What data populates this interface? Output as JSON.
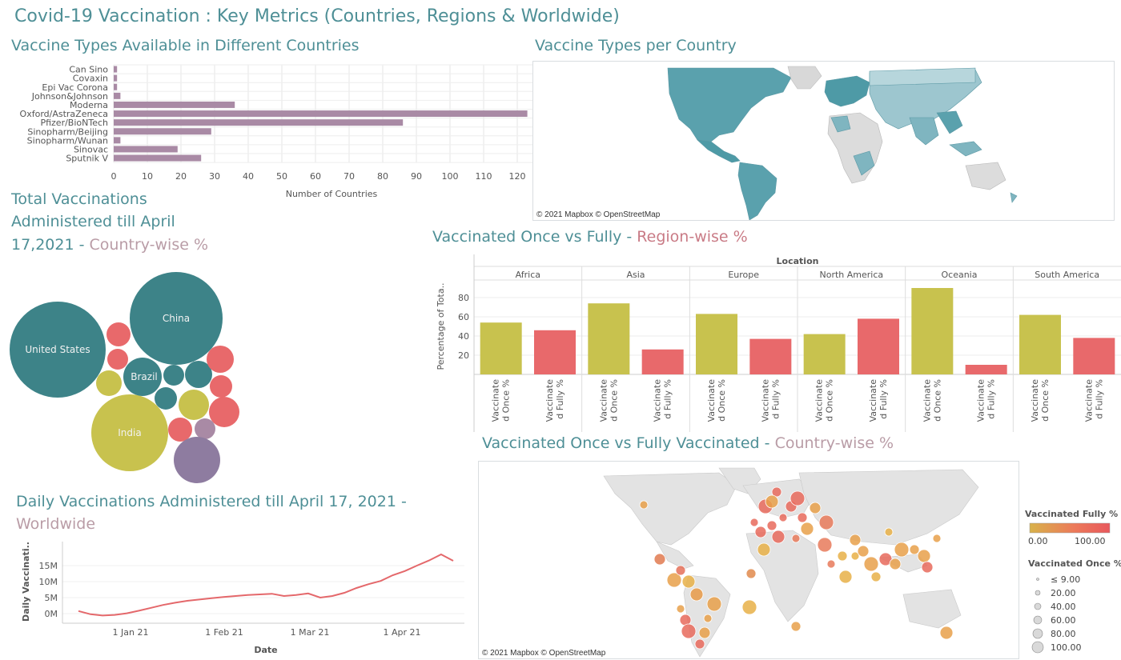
{
  "dashboard_title": "Covid-19 Vaccination : Key Metrics (Countries, Regions & Worldwide)",
  "sections": {
    "vaccine_types_title": "Vaccine Types Available in Different Countries",
    "vaccine_map_title": "Vaccine Types per Country",
    "total_vacc_title_1": "Total Vaccinations",
    "total_vacc_title_2": "Administered till April",
    "total_vacc_title_3": "17,2021 -",
    "total_vacc_title_suffix": "Country-wise %",
    "region_title": "Vaccinated Once vs Fully -",
    "region_title_suffix": "Region-wise %",
    "country_map_title": "Vaccinated Once vs Fully Vaccinated -",
    "country_map_title_suffix": "Country-wise %",
    "daily_title": "Daily Vaccinations Administered till April 17, 2021 -",
    "daily_title_suffix": "Worldwide"
  },
  "map_copyright": "© 2021 Mapbox © OpenStreetMap",
  "colors": {
    "bar_purple": "#a98aa5",
    "teal": "#3f8a8f",
    "title_teal": "#4e8f96",
    "subtitle_rose": "#b99ca6",
    "olive": "#c8c24e",
    "coral": "#e8696b",
    "daily_line": "#e4686b"
  },
  "chart_data": [
    {
      "type": "bar",
      "orientation": "horizontal",
      "categories": [
        "Can Sino",
        "Covaxin",
        "Epi Vac Corona",
        "Johnson&Johnson",
        "Moderna",
        "Oxford/AstraZeneca",
        "Pfizer/BioNTech",
        "Sinopharm/Beijing",
        "Sinopharm/Wunan",
        "Sinovac",
        "Sputnik V"
      ],
      "values": [
        1,
        1,
        1,
        2,
        36,
        123,
        86,
        29,
        2,
        19,
        26
      ],
      "xlabel": "Number of Countries",
      "xticks": [
        "0",
        "10",
        "20",
        "30",
        "40",
        "50",
        "60",
        "70",
        "80",
        "90",
        "100",
        "110",
        "120"
      ],
      "xlim": [
        0,
        130
      ]
    },
    {
      "type": "bar",
      "header": "Location",
      "ylabel": "Percentage of Tota..",
      "yticks": [
        "20",
        "40",
        "60",
        "80"
      ],
      "ylim": [
        0,
        95
      ],
      "bar_labels": [
        "Vaccinate d Once %",
        "Vaccinate d Fully %"
      ],
      "groups": [
        {
          "name": "Africa",
          "once": 54,
          "fully": 46
        },
        {
          "name": "Asia",
          "once": 74,
          "fully": 26
        },
        {
          "name": "Europe",
          "once": 63,
          "fully": 37
        },
        {
          "name": "North America",
          "once": 42,
          "fully": 58
        },
        {
          "name": "Oceania",
          "once": 90,
          "fully": 10
        },
        {
          "name": "South America",
          "once": 62,
          "fully": 38
        }
      ]
    },
    {
      "type": "line",
      "xlabel": "Date",
      "ylabel": "Daily Vaccinati..",
      "yticks": [
        "0M",
        "5M",
        "10M",
        "15M"
      ],
      "xticks": [
        "1 Jan 21",
        "1 Feb 21",
        "1 Mar 21",
        "1 Apr 21"
      ],
      "x": [
        "Dec 14",
        "Dec 18",
        "Dec 22",
        "Dec 26",
        "Dec 30",
        "Jan 3",
        "Jan 7",
        "Jan 11",
        "Jan 15",
        "Jan 19",
        "Jan 23",
        "Jan 27",
        "Jan 31",
        "Feb 4",
        "Feb 8",
        "Feb 12",
        "Feb 16",
        "Feb 20",
        "Feb 24",
        "Feb 28",
        "Mar 4",
        "Mar 8",
        "Mar 12",
        "Mar 16",
        "Mar 20",
        "Mar 24",
        "Mar 28",
        "Apr 1",
        "Apr 5",
        "Apr 9",
        "Apr 13",
        "Apr 17"
      ],
      "values": [
        0.8,
        -0.2,
        -0.6,
        -0.4,
        0.1,
        0.9,
        1.8,
        2.7,
        3.4,
        4.0,
        4.4,
        4.8,
        5.2,
        5.5,
        5.8,
        6.0,
        6.2,
        5.5,
        5.8,
        6.3,
        5.0,
        5.5,
        6.5,
        8.0,
        9.2,
        10.2,
        12.0,
        13.3,
        15.0,
        16.6,
        18.5,
        16.5
      ],
      "ylim": [
        -2,
        20
      ]
    },
    {
      "type": "bubble",
      "labels": [
        "United States",
        "China",
        "Brazil",
        "India"
      ],
      "bubbles": [
        {
          "label": "United States",
          "color": "teal"
        },
        {
          "label": "China",
          "color": "teal"
        },
        {
          "label": "India",
          "color": "olive"
        },
        {
          "label": "Brazil",
          "color": "teal"
        }
      ]
    },
    {
      "type": "scatter",
      "legend_title_color": "Vaccinated Fully %",
      "color_scale_ticks": [
        "0.00",
        "100.00"
      ],
      "legend_title_size": "Vaccinated Once %",
      "size_ticks": [
        "≤ 9.00",
        "20.00",
        "40.00",
        "60.00",
        "80.00",
        "100.00"
      ]
    }
  ]
}
